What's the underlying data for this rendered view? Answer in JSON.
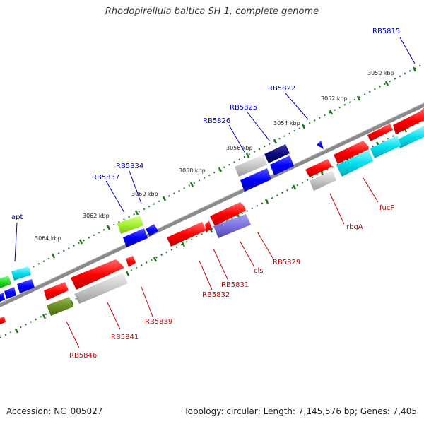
{
  "title": "Rhodopirellula baltica SH 1, complete genome",
  "accession": "Accession: NC_005027",
  "stats": "Topology: circular; Length: 7,145,576 bp; Genes: 7,405",
  "colors": {
    "background": "#ffffff",
    "backbone": "#8a8a8a",
    "tick": "#1e7a1e",
    "top_label": "#0000cc",
    "bottom_label": "#cc0000",
    "scale_text": "#222222"
  },
  "scale_labels": [
    "3050 kbp",
    "3052 kbp",
    "3054 kbp",
    "3056 kbp",
    "3058 kbp",
    "3060 kbp",
    "3062 kbp",
    "3064 kbp"
  ],
  "top_labels": [
    "RB5815",
    "RB5822",
    "RB5825",
    "RB5826",
    "RB5834",
    "RB5837",
    "apt"
  ],
  "bottom_labels": [
    "fucP",
    "rbgA",
    "RB5829",
    "cls",
    "RB5831",
    "RB5832",
    "RB5839",
    "RB5841",
    "RB5846"
  ],
  "genes": [
    {
      "strand": "forward",
      "color": "red"
    },
    {
      "strand": "forward",
      "color": "red"
    },
    {
      "strand": "forward",
      "color": "red"
    },
    {
      "strand": "forward",
      "color": "red"
    },
    {
      "strand": "forward",
      "color": "cyan"
    },
    {
      "strand": "forward",
      "color": "cyan"
    },
    {
      "strand": "forward",
      "color": "red"
    },
    {
      "strand": "forward",
      "color": "grey"
    },
    {
      "strand": "forward",
      "color": "red"
    },
    {
      "strand": "forward",
      "color": "slateblue"
    },
    {
      "strand": "forward",
      "color": "red"
    },
    {
      "strand": "forward",
      "color": "red"
    },
    {
      "strand": "forward",
      "color": "red"
    },
    {
      "strand": "forward",
      "color": "grey"
    },
    {
      "strand": "forward",
      "color": "red"
    },
    {
      "strand": "forward",
      "color": "olive"
    },
    {
      "strand": "reverse",
      "color": "blue"
    },
    {
      "strand": "reverse",
      "color": "navy"
    },
    {
      "strand": "reverse",
      "color": "blue"
    },
    {
      "strand": "reverse",
      "color": "grey"
    },
    {
      "strand": "reverse",
      "color": "blue"
    },
    {
      "strand": "reverse",
      "color": "blue"
    },
    {
      "strand": "reverse",
      "color": "lightgreen"
    },
    {
      "strand": "reverse",
      "color": "blue"
    },
    {
      "strand": "reverse",
      "color": "cyan"
    },
    {
      "strand": "reverse",
      "color": "blue"
    },
    {
      "strand": "reverse",
      "color": "green"
    },
    {
      "strand": "reverse",
      "color": "blue"
    }
  ]
}
